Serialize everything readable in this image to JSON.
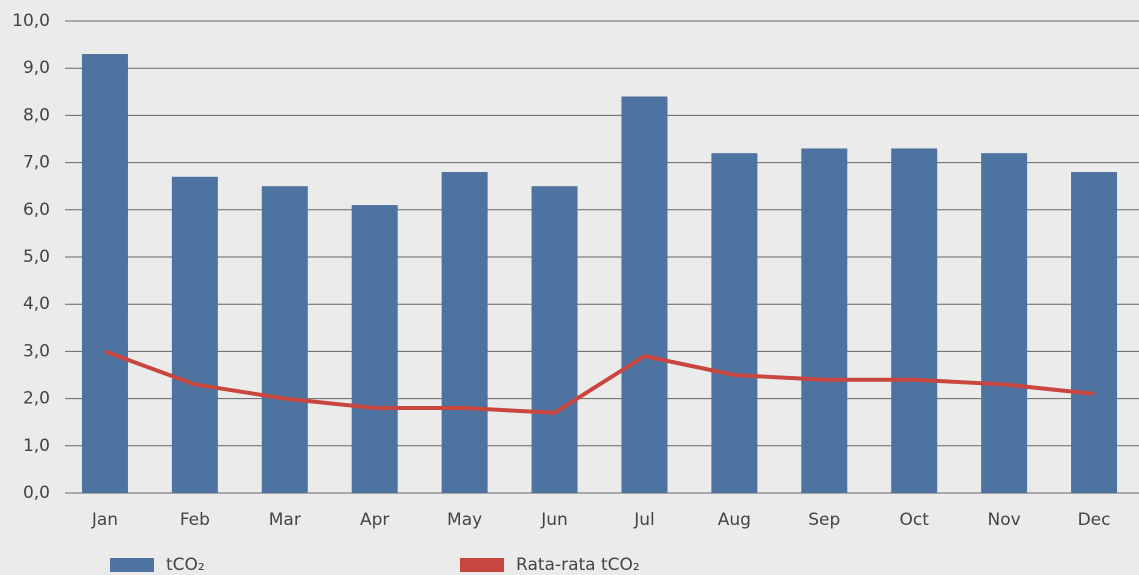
{
  "chart_data": {
    "type": "bar_line",
    "categories": [
      "Jan",
      "Feb",
      "Mar",
      "Apr",
      "May",
      "Jun",
      "Jul",
      "Aug",
      "Sep",
      "Oct",
      "Nov",
      "Dec"
    ],
    "series": [
      {
        "name": "tCO₂",
        "type": "bar",
        "color": "#4e73a0",
        "values": [
          9.3,
          6.7,
          6.5,
          6.1,
          6.8,
          6.5,
          8.4,
          7.2,
          7.3,
          7.3,
          7.2,
          6.8
        ]
      },
      {
        "name": "Rata-rata tCO₂",
        "type": "line",
        "color": "#c9463f",
        "values": [
          3.0,
          2.3,
          2.0,
          1.8,
          1.8,
          1.7,
          2.9,
          2.5,
          2.4,
          2.4,
          2.3,
          2.1
        ]
      }
    ],
    "ylim": [
      0,
      10
    ],
    "yticks": [
      {
        "value": 0,
        "label": "0,0"
      },
      {
        "value": 1,
        "label": "1,0"
      },
      {
        "value": 2,
        "label": "2,0"
      },
      {
        "value": 3,
        "label": "3,0"
      },
      {
        "value": 4,
        "label": "4,0"
      },
      {
        "value": 5,
        "label": "5,0"
      },
      {
        "value": 6,
        "label": "6,0"
      },
      {
        "value": 7,
        "label": "7,0"
      },
      {
        "value": 8,
        "label": "8,0"
      },
      {
        "value": 9,
        "label": "9,0"
      },
      {
        "value": 10,
        "label": "10,0"
      }
    ],
    "grid": true,
    "legend": "bottom"
  }
}
